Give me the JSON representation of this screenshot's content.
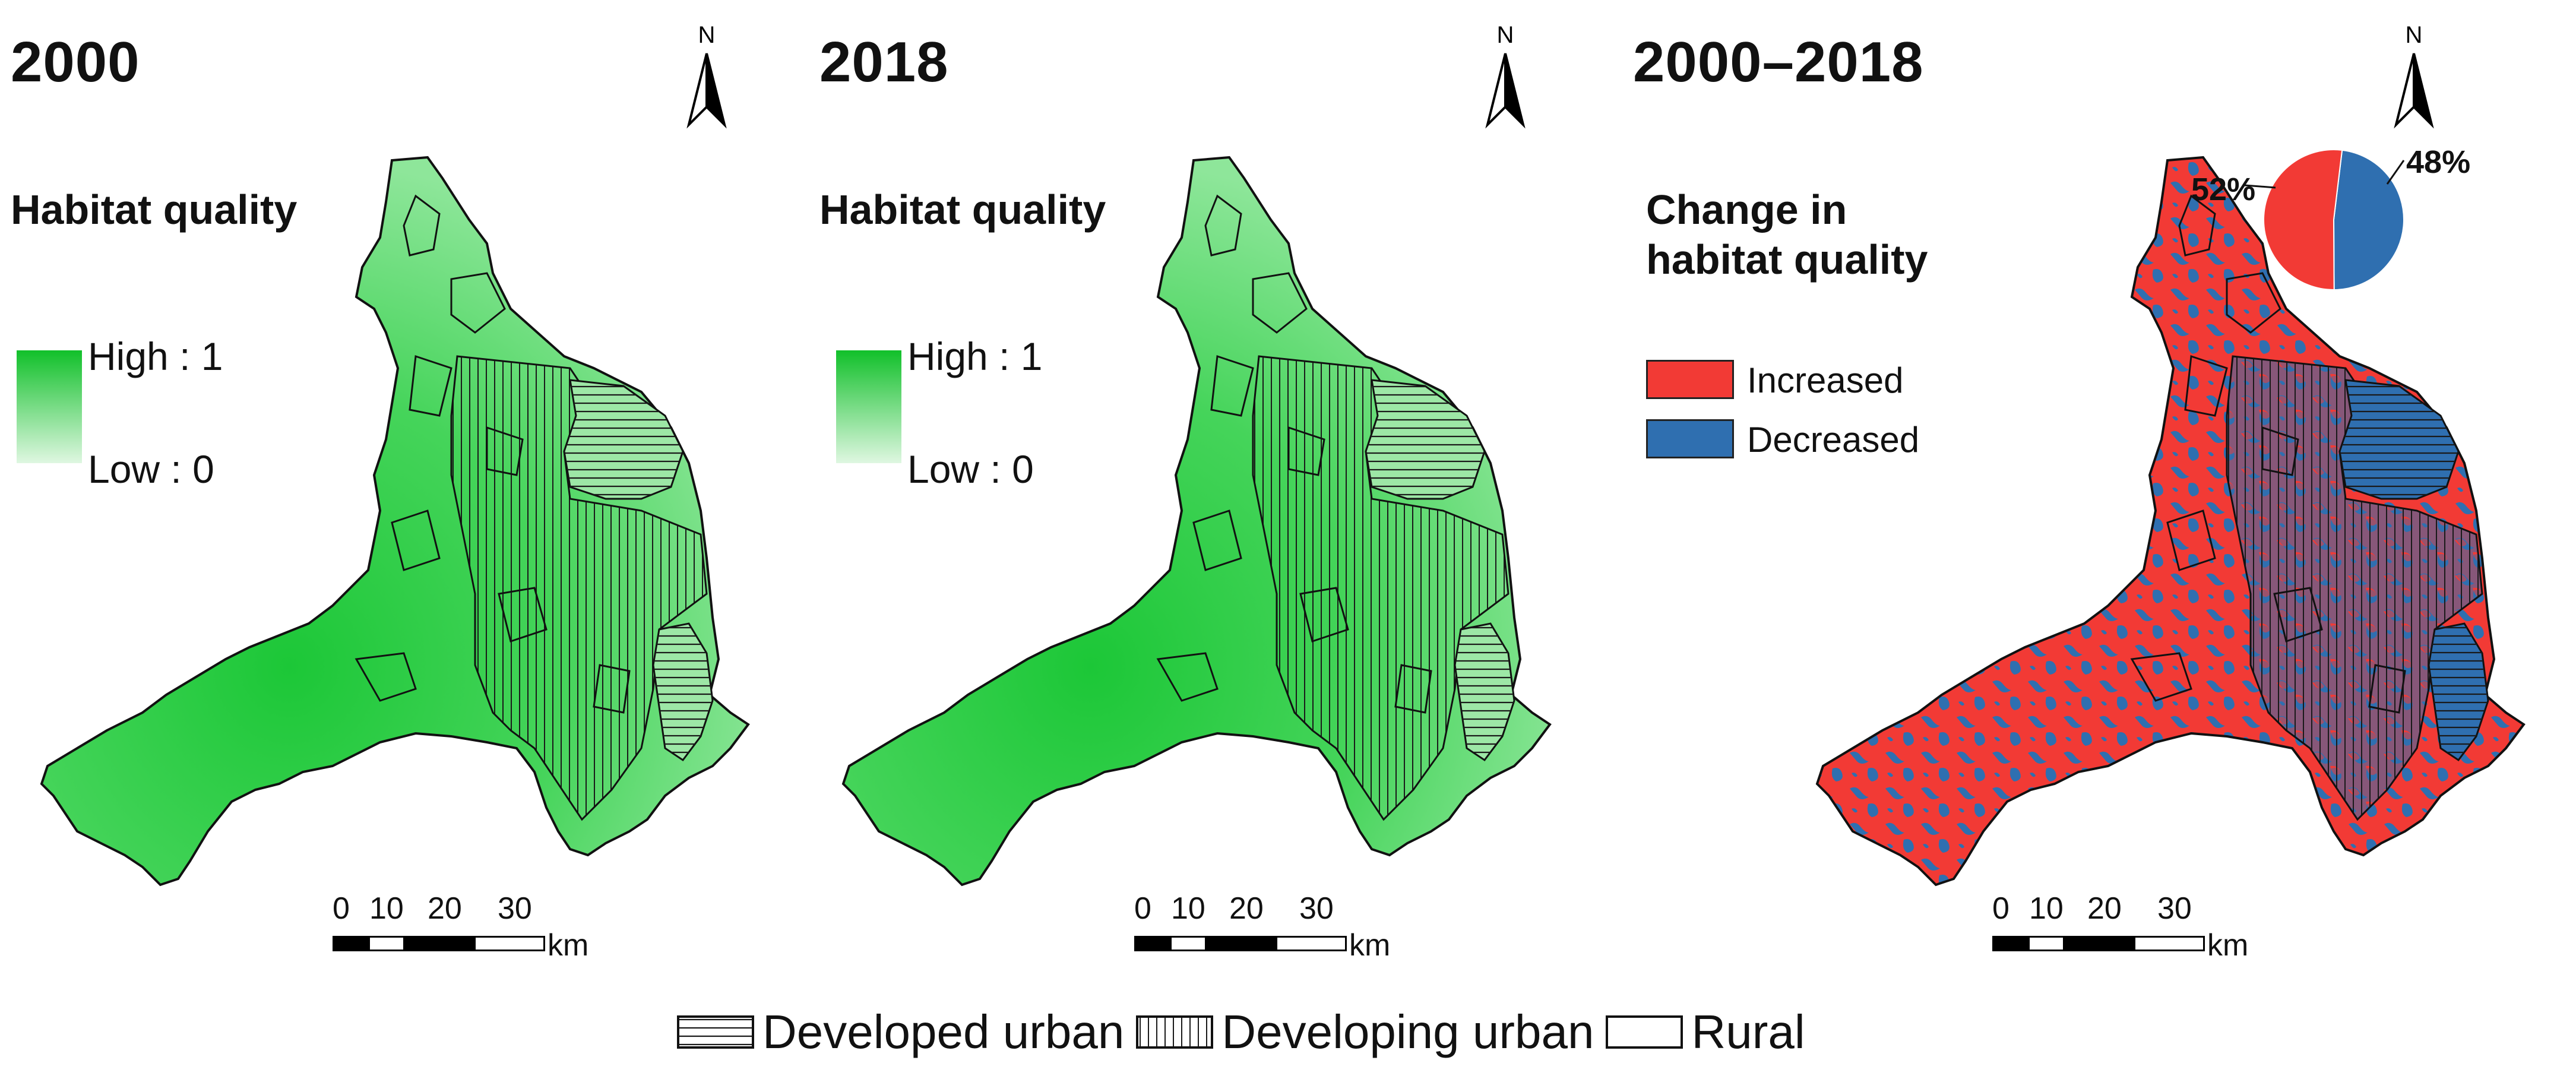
{
  "panels": [
    {
      "year": "2000",
      "north": "N",
      "legend_title": "Habitat quality",
      "legend_high": "High : 1",
      "legend_low": "Low : 0"
    },
    {
      "year": "2018",
      "north": "N",
      "legend_title": "Habitat quality",
      "legend_high": "High : 1",
      "legend_low": "Low : 0"
    },
    {
      "year": "2000–2018",
      "north": "N",
      "legend_title_line1": "Change in",
      "legend_title_line2": "habitat quality",
      "increased_label": "Increased",
      "decreased_label": "Decreased",
      "pie_increased_label": "52%",
      "pie_decreased_label": "48%",
      "pie_increased_fraction": 0.52,
      "pie_decreased_fraction": 0.48
    }
  ],
  "scale": {
    "ticks": [
      "0",
      "10",
      "20",
      "30"
    ],
    "unit": "km"
  },
  "colors": {
    "habitat_high": "#11c02a",
    "habitat_low": "#dff7e1",
    "increased": "#f23a35",
    "decreased": "#2f6fb0"
  },
  "bottom_legend": {
    "developed": "Developed urban",
    "developing": "Developing urban",
    "rural": "Rural"
  }
}
